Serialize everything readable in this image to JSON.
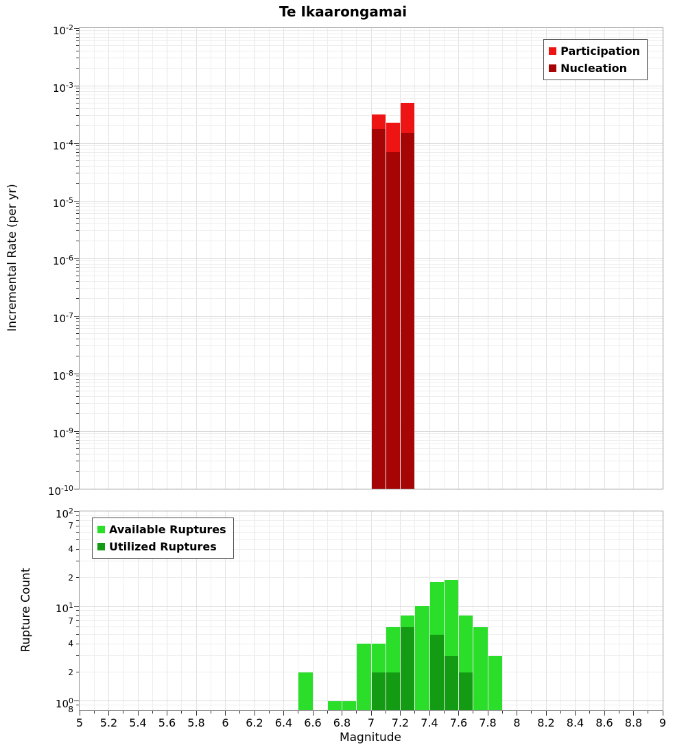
{
  "title": "Te Ikaarongamai",
  "colors": {
    "participation": "#ee1414",
    "nucleation": "#a50505",
    "available": "#2ade2a",
    "utilized": "#149b14",
    "grid_h_major": "#dadada",
    "grid_h_minor": "#ededed",
    "grid_v_major": "#e2e2e2",
    "grid_v_minor": "#ededed",
    "axis": "#333333"
  },
  "chart_data": [
    {
      "type": "bar",
      "title": "Te Ikaarongamai",
      "xlabel": "",
      "ylabel": "Incremental Rate (per yr)",
      "x_range": [
        5,
        9
      ],
      "x_tick_step": 0.2,
      "y_scale": "log",
      "y_range": [
        1e-10,
        0.01
      ],
      "y_tick_labels": [
        "10^-2",
        "10^-3",
        "10^-4",
        "10^-5",
        "10^-6",
        "10^-7",
        "10^-8",
        "10^-9",
        "10^-10"
      ],
      "y_minor_labels": [],
      "bar_width": 0.1,
      "show_x_axis": false,
      "grid": true,
      "legend": {
        "position": "top-right",
        "entries": [
          {
            "label": "Participation",
            "color_key": "participation"
          },
          {
            "label": "Nucleation",
            "color_key": "nucleation"
          }
        ]
      },
      "series": [
        {
          "name": "Participation",
          "color_key": "participation",
          "x": [
            7.0,
            7.1,
            7.2
          ],
          "values": [
            0.00032,
            0.00023,
            0.0005
          ]
        },
        {
          "name": "Nucleation",
          "color_key": "nucleation",
          "x": [
            7.0,
            7.1,
            7.2
          ],
          "values": [
            0.00018,
            7e-05,
            0.00015
          ]
        }
      ]
    },
    {
      "type": "bar",
      "title": "",
      "xlabel": "Magnitude",
      "ylabel": "Rupture Count",
      "x_range": [
        5,
        9
      ],
      "x_tick_step": 0.2,
      "x_tick_labels": [
        "5",
        "5.2",
        "5.4",
        "5.6",
        "5.8",
        "6",
        "6.2",
        "6.4",
        "6.6",
        "6.8",
        "7",
        "7.2",
        "7.4",
        "7.6",
        "7.8",
        "8",
        "8.2",
        "8.4",
        "8.6",
        "8.8",
        "9"
      ],
      "y_scale": "log",
      "y_range": [
        0.8,
        100
      ],
      "y_tick_labels": [
        "10^2",
        "10^1",
        "10^0"
      ],
      "y_minor_labels": [
        7,
        4,
        2
      ],
      "y_edge_label": {
        "text": "8",
        "value": 0.8
      },
      "bar_width": 0.1,
      "show_x_axis": true,
      "grid": true,
      "legend": {
        "position": "top-left",
        "entries": [
          {
            "label": "Available Ruptures",
            "color_key": "available"
          },
          {
            "label": "Utilized Ruptures",
            "color_key": "utilized"
          }
        ]
      },
      "series": [
        {
          "name": "Available Ruptures",
          "color_key": "available",
          "x": [
            6.5,
            6.7,
            6.8,
            6.9,
            7.0,
            7.1,
            7.2,
            7.3,
            7.4,
            7.5,
            7.6,
            7.7,
            7.8
          ],
          "values": [
            2,
            1,
            1,
            4,
            4,
            6,
            8,
            10,
            18,
            19,
            8,
            6,
            3
          ]
        },
        {
          "name": "Utilized Ruptures",
          "color_key": "utilized",
          "x": [
            7.0,
            7.1,
            7.2,
            7.4,
            7.5,
            7.6
          ],
          "values": [
            2,
            2,
            6,
            5,
            3,
            2
          ]
        }
      ]
    }
  ]
}
